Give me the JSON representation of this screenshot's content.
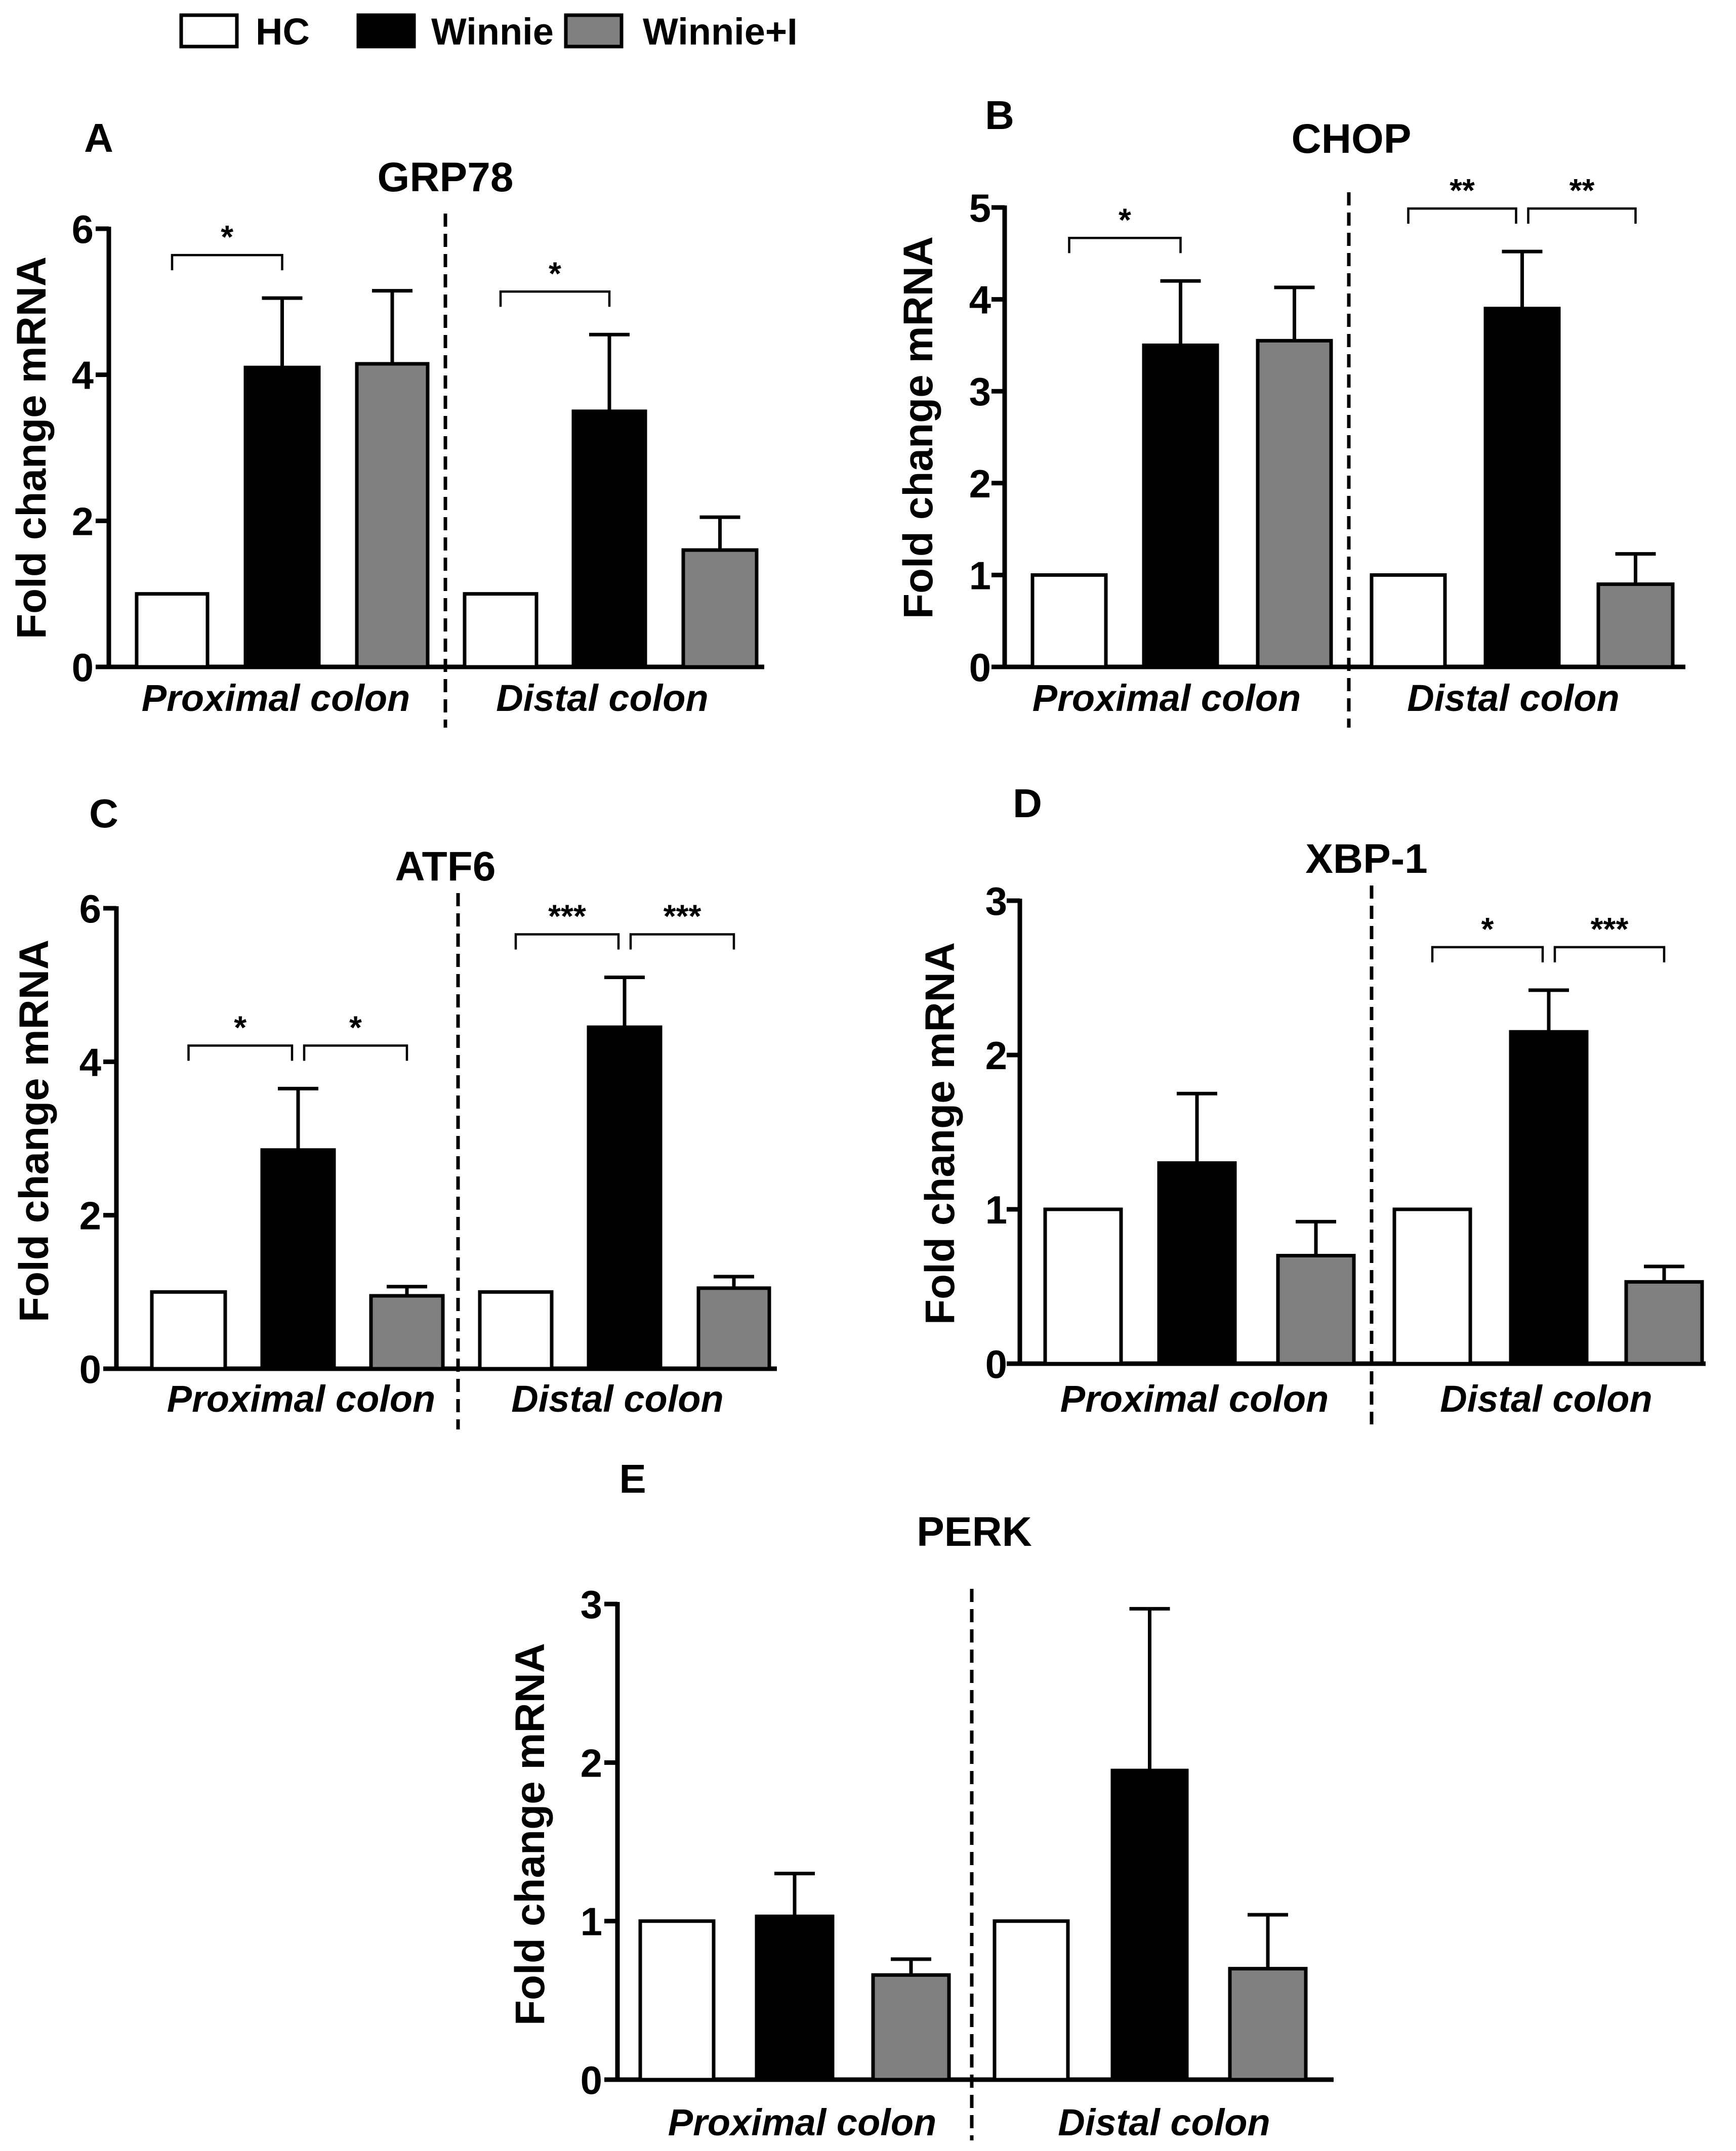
{
  "legend": {
    "items": [
      {
        "label": "HC",
        "color": "#ffffff"
      },
      {
        "label": "Winnie",
        "color": "#000000"
      },
      {
        "label": "Winnie+I",
        "color": "#808080"
      }
    ]
  },
  "chart_data": [
    {
      "panel": "A",
      "type": "bar",
      "title": "GRP78",
      "ylabel": "Fold change mRNA",
      "xlabel": "",
      "ylim": [
        0,
        6
      ],
      "yticks": [
        0,
        2,
        4,
        6
      ],
      "groups": [
        "Proximal colon",
        "Distal colon"
      ],
      "series": [
        {
          "name": "HC",
          "values": [
            1.0,
            1.0
          ],
          "errors": [
            0,
            0
          ]
        },
        {
          "name": "Winnie",
          "values": [
            4.1,
            3.5
          ],
          "errors": [
            0.95,
            1.05
          ]
        },
        {
          "name": "Winnie+I",
          "values": [
            4.15,
            1.6
          ],
          "errors": [
            1.0,
            0.45
          ]
        }
      ],
      "significance": [
        {
          "group": 0,
          "from": 0,
          "to": 1,
          "label": "*"
        },
        {
          "group": 1,
          "from": 0,
          "to": 1,
          "label": "*"
        }
      ]
    },
    {
      "panel": "B",
      "type": "bar",
      "title": "CHOP",
      "ylabel": "Fold change mRNA",
      "xlabel": "",
      "ylim": [
        0,
        5
      ],
      "yticks": [
        0,
        1,
        2,
        3,
        4,
        5
      ],
      "groups": [
        "Proximal colon",
        "Distal colon"
      ],
      "series": [
        {
          "name": "HC",
          "values": [
            1.0,
            1.0
          ],
          "errors": [
            0,
            0
          ]
        },
        {
          "name": "Winnie",
          "values": [
            3.5,
            3.9
          ],
          "errors": [
            0.7,
            0.62
          ]
        },
        {
          "name": "Winnie+I",
          "values": [
            3.55,
            0.9
          ],
          "errors": [
            0.58,
            0.33
          ]
        }
      ],
      "significance": [
        {
          "group": 0,
          "from": 0,
          "to": 1,
          "label": "*"
        },
        {
          "group": 1,
          "from": 0,
          "to": 1,
          "label": "**"
        },
        {
          "group": 1,
          "from": 1,
          "to": 2,
          "label": "**"
        }
      ]
    },
    {
      "panel": "C",
      "type": "bar",
      "title": "ATF6",
      "ylabel": "Fold change mRNA",
      "xlabel": "",
      "ylim": [
        0,
        6
      ],
      "yticks": [
        0,
        2,
        4,
        6
      ],
      "groups": [
        "Proximal colon",
        "Distal colon"
      ],
      "series": [
        {
          "name": "HC",
          "values": [
            1.0,
            1.0
          ],
          "errors": [
            0,
            0
          ]
        },
        {
          "name": "Winnie",
          "values": [
            2.85,
            4.45
          ],
          "errors": [
            0.8,
            0.65
          ]
        },
        {
          "name": "Winnie+I",
          "values": [
            0.95,
            1.05
          ],
          "errors": [
            0.12,
            0.15
          ]
        }
      ],
      "significance": [
        {
          "group": 0,
          "from": 0,
          "to": 1,
          "label": "*"
        },
        {
          "group": 0,
          "from": 1,
          "to": 2,
          "label": "*"
        },
        {
          "group": 1,
          "from": 0,
          "to": 1,
          "label": "***"
        },
        {
          "group": 1,
          "from": 1,
          "to": 2,
          "label": "***"
        }
      ]
    },
    {
      "panel": "D",
      "type": "bar",
      "title": "XBP-1",
      "ylabel": "Fold change mRNA",
      "xlabel": "",
      "ylim": [
        0,
        3
      ],
      "yticks": [
        0,
        1,
        2,
        3
      ],
      "groups": [
        "Proximal colon",
        "Distal colon"
      ],
      "series": [
        {
          "name": "HC",
          "values": [
            1.0,
            1.0
          ],
          "errors": [
            0,
            0
          ]
        },
        {
          "name": "Winnie",
          "values": [
            1.3,
            2.15
          ],
          "errors": [
            0.45,
            0.27
          ]
        },
        {
          "name": "Winnie+I",
          "values": [
            0.7,
            0.53
          ],
          "errors": [
            0.22,
            0.1
          ]
        }
      ],
      "significance": [
        {
          "group": 1,
          "from": 0,
          "to": 1,
          "label": "*"
        },
        {
          "group": 1,
          "from": 1,
          "to": 2,
          "label": "***"
        }
      ]
    },
    {
      "panel": "E",
      "type": "bar",
      "title": "PERK",
      "ylabel": "Fold change mRNA",
      "xlabel": "",
      "ylim": [
        0,
        3
      ],
      "yticks": [
        0,
        1,
        2,
        3
      ],
      "groups": [
        "Proximal colon",
        "Distal colon"
      ],
      "series": [
        {
          "name": "HC",
          "values": [
            1.0,
            1.0
          ],
          "errors": [
            0,
            0
          ]
        },
        {
          "name": "Winnie",
          "values": [
            1.03,
            1.95
          ],
          "errors": [
            0.27,
            1.02
          ]
        },
        {
          "name": "Winnie+I",
          "values": [
            0.66,
            0.7
          ],
          "errors": [
            0.1,
            0.34
          ]
        }
      ],
      "significance": []
    }
  ]
}
